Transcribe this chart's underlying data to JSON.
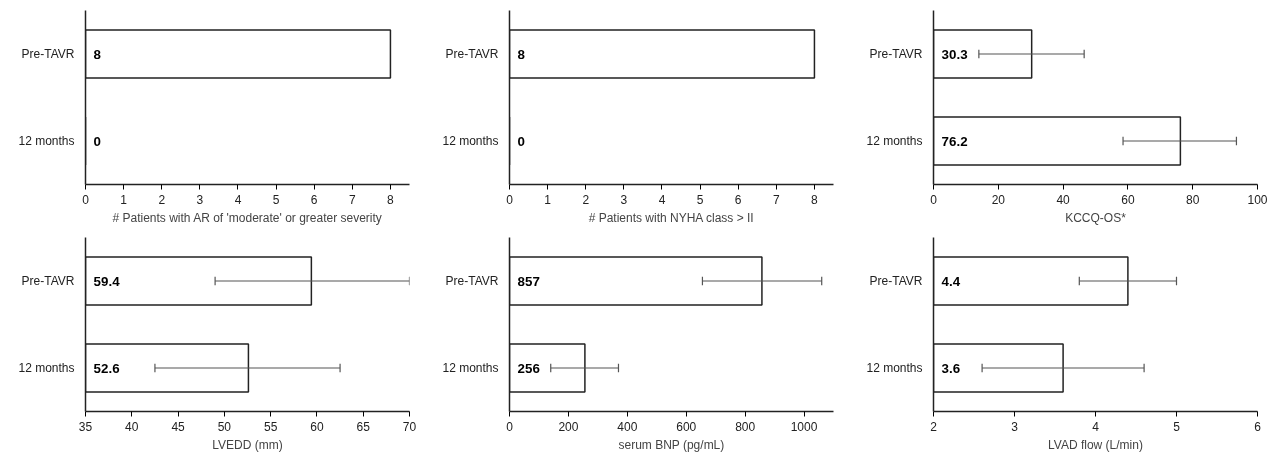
{
  "chart_data": [
    {
      "type": "bar",
      "orientation": "horizontal",
      "xlabel": "# Patients with AR of 'moderate' or greater severity",
      "categories": [
        "Pre-TAVR",
        "12 months"
      ],
      "values": [
        8,
        0
      ],
      "color": "#ffffff",
      "xlim": [
        0,
        8.5
      ],
      "xticks": [
        0,
        1,
        2,
        3,
        4,
        5,
        6,
        7,
        8
      ],
      "data_labels": true,
      "grid": false
    },
    {
      "type": "bar",
      "orientation": "horizontal",
      "xlabel": "# Patients with NYHA class > II",
      "categories": [
        "Pre-TAVR",
        "12 months"
      ],
      "values": [
        8,
        0
      ],
      "color": "#ffffff",
      "xlim": [
        0,
        8.5
      ],
      "xticks": [
        0,
        1,
        2,
        3,
        4,
        5,
        6,
        7,
        8
      ],
      "data_labels": true,
      "grid": false
    },
    {
      "type": "bar",
      "orientation": "horizontal",
      "xlabel": "KCCQ-OS*",
      "categories": [
        "Pre-TAVR",
        "12 months"
      ],
      "values": [
        30.3,
        76.2
      ],
      "errors": [
        [
          14,
          46.5
        ],
        [
          58.5,
          93.5
        ]
      ],
      "color": "#ffffff",
      "xlim": [
        0,
        100
      ],
      "xticks": [
        0,
        20,
        40,
        60,
        80,
        100
      ],
      "data_labels": true,
      "grid": false
    },
    {
      "type": "bar",
      "orientation": "horizontal",
      "xlabel": "LVEDD (mm)",
      "categories": [
        "Pre-TAVR",
        "12 months"
      ],
      "values": [
        59.4,
        52.6
      ],
      "errors": [
        [
          49,
          70
        ],
        [
          42.5,
          62.5
        ]
      ],
      "color": "#ffffff",
      "xlim": [
        35,
        70
      ],
      "xticks": [
        35,
        40,
        45,
        50,
        55,
        60,
        65,
        70
      ],
      "data_labels": true,
      "grid": false
    },
    {
      "type": "bar",
      "orientation": "horizontal",
      "xlabel": "serum BNP (pg/mL)",
      "categories": [
        "Pre-TAVR",
        "12 months"
      ],
      "values": [
        857,
        256
      ],
      "errors": [
        [
          655,
          1060
        ],
        [
          140,
          370
        ]
      ],
      "color": "#ffffff",
      "xlim": [
        0,
        1100
      ],
      "xticks": [
        0,
        200,
        400,
        600,
        800,
        1000
      ],
      "data_labels": true,
      "grid": false
    },
    {
      "type": "bar",
      "orientation": "horizontal",
      "xlabel": "LVAD flow (L/min)",
      "categories": [
        "Pre-TAVR",
        "12 months"
      ],
      "values": [
        4.4,
        3.6
      ],
      "errors": [
        [
          3.8,
          5.0
        ],
        [
          2.6,
          4.6
        ]
      ],
      "color": "#ffffff",
      "xlim": [
        2,
        6
      ],
      "xticks": [
        2,
        3,
        4,
        5,
        6
      ],
      "data_labels": true,
      "grid": false
    }
  ]
}
